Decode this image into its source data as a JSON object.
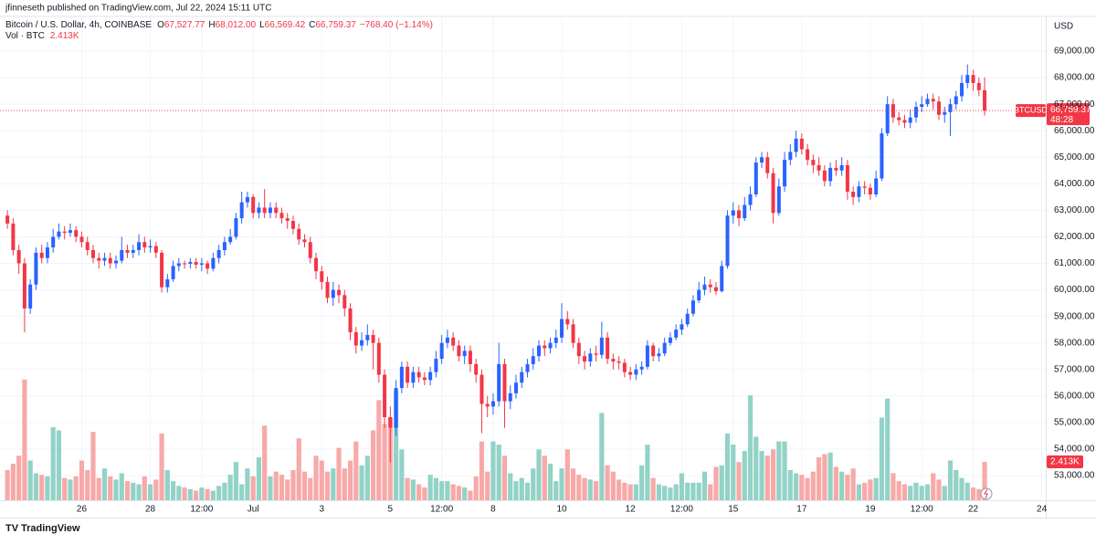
{
  "published_by": "jfinneseth published on TradingView.com, Jul 22, 2024 15:11 UTC",
  "legend": {
    "symbol": "Bitcoin / U.S. Dollar, 4h, COINBASE",
    "ohlc": [
      {
        "letter": "O",
        "value": "67,527.77"
      },
      {
        "letter": "H",
        "value": "68,012.00"
      },
      {
        "letter": "L",
        "value": "66,569.42"
      },
      {
        "letter": "C",
        "value": "66,759.37"
      }
    ],
    "change": "−768.40 (−1.14%)",
    "volume_title": "Vol · BTC",
    "volume_value": "2.413K"
  },
  "footer": "TradingView",
  "chart_data": {
    "type": "candlestick",
    "currency": "USD",
    "symbol_label": "BTCUSD",
    "countdown": "48:28",
    "last_price_label": "66,759.37",
    "last_volume_label": "2.413K",
    "up_color": "#2962ff",
    "down_color": "#f23645",
    "volume_up_color": "#92d2c7",
    "volume_down_color": "#f7a9a8",
    "grid": true,
    "xlim": [
      -1.3,
      181.7
    ],
    "xticks": [
      {
        "value": 13,
        "label": "26"
      },
      {
        "value": 25,
        "label": "28"
      },
      {
        "value": 34,
        "label": "12:00"
      },
      {
        "value": 43,
        "label": "Jul"
      },
      {
        "value": 55,
        "label": "3"
      },
      {
        "value": 67,
        "label": "5"
      },
      {
        "value": 76,
        "label": "12:00"
      },
      {
        "value": 85,
        "label": "8"
      },
      {
        "value": 97,
        "label": "10"
      },
      {
        "value": 109,
        "label": "12"
      },
      {
        "value": 118,
        "label": "12:00"
      },
      {
        "value": 127,
        "label": "15"
      },
      {
        "value": 139,
        "label": "17"
      },
      {
        "value": 151,
        "label": "19"
      },
      {
        "value": 160,
        "label": "12:00"
      },
      {
        "value": 169,
        "label": "22"
      },
      {
        "value": 181,
        "label": "24"
      }
    ],
    "ylim": [
      52070,
      70240
    ],
    "yticks": [
      {
        "value": 53000,
        "label": "53,000.00"
      },
      {
        "value": 54000,
        "label": "54,000.00"
      },
      {
        "value": 55000,
        "label": "55,000.00"
      },
      {
        "value": 56000,
        "label": "56,000.00"
      },
      {
        "value": 57000,
        "label": "57,000.00"
      },
      {
        "value": 58000,
        "label": "58,000.00"
      },
      {
        "value": 59000,
        "label": "59,000.00"
      },
      {
        "value": 60000,
        "label": "60,000.00"
      },
      {
        "value": 61000,
        "label": "61,000.00"
      },
      {
        "value": 62000,
        "label": "62,000.00"
      },
      {
        "value": 63000,
        "label": "63,000.00"
      },
      {
        "value": 64000,
        "label": "64,000.00"
      },
      {
        "value": 65000,
        "label": "65,000.00"
      },
      {
        "value": 66000,
        "label": "66,000.00"
      },
      {
        "value": 67000,
        "label": "67,000.00"
      },
      {
        "value": 68000,
        "label": "68,000.00"
      },
      {
        "value": 69000,
        "label": "69,000.00"
      }
    ],
    "vlim": [
      0,
      30360
    ],
    "open": [
      62800,
      62500,
      61500,
      61000,
      59300,
      60200,
      61400,
      61200,
      61600,
      62000,
      62200,
      62150,
      62250,
      62000,
      61800,
      61500,
      61200,
      61100,
      61200,
      61000,
      61100,
      61500,
      61400,
      61500,
      61800,
      61600,
      61650,
      61400,
      60100,
      60400,
      60900,
      61000,
      60980,
      61050,
      60950,
      61000,
      60800,
      61200,
      61500,
      61800,
      62000,
      62700,
      63300,
      63500,
      62900,
      63100,
      62900,
      63100,
      62900,
      62700,
      62600,
      62300,
      61900,
      61800,
      61200,
      60700,
      60300,
      59700,
      60000,
      59800,
      59300,
      58400,
      57900,
      58100,
      58300,
      58000,
      56800,
      55200,
      54800,
      56300,
      57100,
      56500,
      56900,
      56700,
      56600,
      56900,
      57400,
      58000,
      58200,
      57900,
      57500,
      57700,
      57200,
      56800,
      55700,
      55600,
      55800,
      57200,
      55800,
      56100,
      56500,
      56900,
      57200,
      57500,
      57900,
      57800,
      58000,
      58200,
      58900,
      58700,
      58000,
      57500,
      57300,
      57600,
      57550,
      58200,
      57400,
      57300,
      57250,
      56900,
      56800,
      57000,
      57100,
      57900,
      57500,
      57600,
      58000,
      58200,
      58500,
      58700,
      59100,
      59600,
      60000,
      60200,
      60100,
      59950,
      60900,
      62800,
      63000,
      62700,
      63200,
      63600,
      64800,
      65000,
      64400,
      62900,
      63900,
      64900,
      65200,
      65700,
      65300,
      64900,
      64700,
      64500,
      64100,
      64600,
      64500,
      64700,
      63700,
      63500,
      63900,
      63850,
      63600,
      64200,
      65900,
      67000,
      66500,
      66400,
      66300,
      66500,
      66900,
      67000,
      67200,
      67100,
      66600,
      66700,
      67000,
      67300,
      67800,
      68100,
      67800,
      67527.77
    ],
    "high": [
      63000,
      62700,
      61700,
      61200,
      60400,
      61600,
      61700,
      61800,
      62300,
      62500,
      62400,
      62500,
      62400,
      62200,
      62000,
      61700,
      61400,
      61400,
      61400,
      61300,
      62000,
      61700,
      61700,
      62100,
      62000,
      61900,
      61800,
      61500,
      60600,
      61100,
      61200,
      61100,
      61200,
      61200,
      61200,
      61100,
      61400,
      61700,
      62000,
      62300,
      62900,
      63700,
      63700,
      63600,
      63300,
      63800,
      63300,
      63300,
      63100,
      62900,
      62800,
      62500,
      62100,
      62000,
      61400,
      60900,
      60500,
      60300,
      60200,
      60000,
      59500,
      58600,
      58400,
      58700,
      58500,
      58200,
      57000,
      55600,
      56600,
      57300,
      57300,
      57100,
      57100,
      56900,
      57100,
      57700,
      58300,
      58500,
      58400,
      58100,
      57900,
      57900,
      57400,
      57000,
      56000,
      56100,
      58000,
      57400,
      56400,
      56800,
      57100,
      57400,
      57800,
      58100,
      58100,
      58200,
      58500,
      59500,
      59200,
      58900,
      58200,
      57700,
      57800,
      57900,
      58800,
      58400,
      57600,
      57500,
      57400,
      57100,
      57200,
      57300,
      58100,
      58000,
      57800,
      58200,
      58400,
      58700,
      58900,
      59300,
      59800,
      60300,
      60500,
      60400,
      60300,
      61100,
      63000,
      63300,
      63200,
      63500,
      63900,
      65000,
      65200,
      65200,
      64600,
      64200,
      65200,
      65500,
      66000,
      65900,
      65500,
      65100,
      65000,
      64700,
      64800,
      64900,
      65000,
      64900,
      63900,
      64100,
      64100,
      64000,
      64500,
      66100,
      67300,
      67200,
      66700,
      66600,
      66800,
      67100,
      67300,
      67400,
      67400,
      67300,
      66900,
      67200,
      67500,
      68100,
      68500,
      68300,
      68000,
      68012
    ],
    "low": [
      62300,
      61300,
      60600,
      58400,
      59100,
      60000,
      61000,
      61000,
      61400,
      61900,
      61900,
      62000,
      61800,
      61600,
      61300,
      61000,
      60800,
      60900,
      60800,
      60800,
      61000,
      61200,
      61200,
      61300,
      61400,
      61400,
      61200,
      59900,
      59900,
      60300,
      60700,
      60800,
      60800,
      60800,
      60700,
      60600,
      60700,
      61000,
      61300,
      61700,
      61900,
      62500,
      63100,
      62700,
      62700,
      62700,
      62700,
      62700,
      62500,
      62300,
      62100,
      61700,
      61600,
      61000,
      60400,
      60000,
      59500,
      59400,
      59500,
      59000,
      58100,
      57600,
      57700,
      57900,
      57000,
      56500,
      54800,
      53500,
      54500,
      56100,
      56300,
      56300,
      56500,
      56400,
      56400,
      56700,
      57200,
      57800,
      57700,
      57300,
      57200,
      56900,
      56500,
      54600,
      55200,
      55300,
      55600,
      54800,
      55500,
      55900,
      56300,
      56700,
      57000,
      57300,
      57500,
      57600,
      57800,
      58000,
      58500,
      57800,
      57200,
      57000,
      57100,
      57300,
      57400,
      57200,
      57000,
      57000,
      56700,
      56600,
      56600,
      56800,
      57000,
      57300,
      57300,
      57500,
      57900,
      58100,
      58300,
      58600,
      59000,
      59500,
      59800,
      59900,
      59800,
      59900,
      60800,
      62500,
      62400,
      62600,
      63000,
      63500,
      64600,
      64200,
      62500,
      62800,
      63700,
      64700,
      65000,
      65100,
      64700,
      64400,
      64300,
      63900,
      63900,
      64300,
      64300,
      63400,
      63200,
      63300,
      63600,
      63400,
      63500,
      64100,
      65800,
      66300,
      66200,
      66100,
      66100,
      66300,
      66700,
      66900,
      66800,
      66400,
      66300,
      65800,
      66800,
      67100,
      67600,
      67500,
      67300,
      66569.42
    ],
    "close": [
      62500,
      61500,
      61000,
      59300,
      60200,
      61400,
      61200,
      61600,
      62000,
      62200,
      62150,
      62250,
      62000,
      61800,
      61500,
      61200,
      61100,
      61200,
      61000,
      61100,
      61500,
      61400,
      61500,
      61800,
      61600,
      61650,
      61400,
      60100,
      60400,
      60900,
      61000,
      60980,
      61050,
      60950,
      61000,
      60800,
      61200,
      61500,
      61800,
      62000,
      62700,
      63300,
      63500,
      62900,
      63100,
      62900,
      63100,
      62900,
      62700,
      62600,
      62300,
      61900,
      61800,
      61200,
      60700,
      60300,
      59700,
      60000,
      59800,
      59300,
      58400,
      57900,
      58100,
      58300,
      58000,
      56800,
      55200,
      54800,
      56300,
      57100,
      56500,
      56900,
      56700,
      56600,
      56900,
      57400,
      58000,
      58200,
      57900,
      57500,
      57700,
      57200,
      56800,
      55700,
      55600,
      55800,
      57200,
      55800,
      56100,
      56500,
      56900,
      57200,
      57500,
      57900,
      57800,
      58000,
      58200,
      58900,
      58700,
      58000,
      57500,
      57300,
      57600,
      57550,
      58200,
      57400,
      57300,
      57250,
      56900,
      56800,
      57000,
      57100,
      57900,
      57500,
      57600,
      58000,
      58200,
      58500,
      58700,
      59100,
      59600,
      60000,
      60200,
      60100,
      59950,
      60900,
      62800,
      63000,
      62700,
      63200,
      63600,
      64800,
      65000,
      64400,
      62900,
      63900,
      64900,
      65200,
      65700,
      65300,
      64900,
      64700,
      64500,
      64100,
      64600,
      64500,
      64700,
      63700,
      63500,
      63900,
      63850,
      63600,
      64200,
      65900,
      67000,
      66500,
      66400,
      66300,
      66500,
      66900,
      67000,
      67200,
      67100,
      66600,
      66700,
      67000,
      67300,
      67800,
      68100,
      67800,
      67527.77,
      66759.37
    ],
    "volume": [
      1900,
      2300,
      2800,
      7600,
      2500,
      1700,
      1600,
      1500,
      4600,
      4400,
      1400,
      1300,
      1500,
      2500,
      1900,
      4300,
      1400,
      2000,
      1500,
      1300,
      1700,
      1200,
      1100,
      1000,
      1500,
      1000,
      1300,
      4200,
      1900,
      1200,
      900,
      800,
      700,
      600,
      800,
      700,
      600,
      900,
      1100,
      1600,
      2400,
      1000,
      2000,
      1500,
      2700,
      4700,
      1500,
      1800,
      1600,
      1300,
      1900,
      3900,
      1800,
      1400,
      2800,
      2500,
      1800,
      2000,
      3300,
      2000,
      2500,
      3700,
      2200,
      2800,
      4400,
      6300,
      4800,
      5200,
      6900,
      3200,
      1400,
      1300,
      1000,
      800,
      1600,
      1400,
      1200,
      1200,
      1000,
      900,
      800,
      600,
      1500,
      3700,
      1800,
      3700,
      3500,
      2800,
      1700,
      1200,
      1400,
      1100,
      2000,
      3200,
      2800,
      2300,
      1200,
      2000,
      3200,
      2000,
      1600,
      1400,
      1300,
      1200,
      5500,
      2200,
      1800,
      1300,
      1100,
      1000,
      1000,
      2200,
      3500,
      1400,
      1000,
      900,
      800,
      1000,
      1700,
      1100,
      1100,
      1100,
      1800,
      1000,
      2100,
      2200,
      4200,
      3500,
      2400,
      3100,
      6600,
      4000,
      3100,
      2800,
      3200,
      3700,
      3700,
      1900,
      1700,
      1600,
      1400,
      1800,
      2700,
      2900,
      3000,
      2100,
      1800,
      1600,
      2000,
      1000,
      1100,
      1300,
      1400,
      5200,
      6400,
      1700,
      1200,
      1000,
      900,
      1100,
      900,
      1000,
      1700,
      1300,
      900,
      2500,
      1900,
      1400,
      1100,
      800,
      700,
      2413
    ]
  }
}
